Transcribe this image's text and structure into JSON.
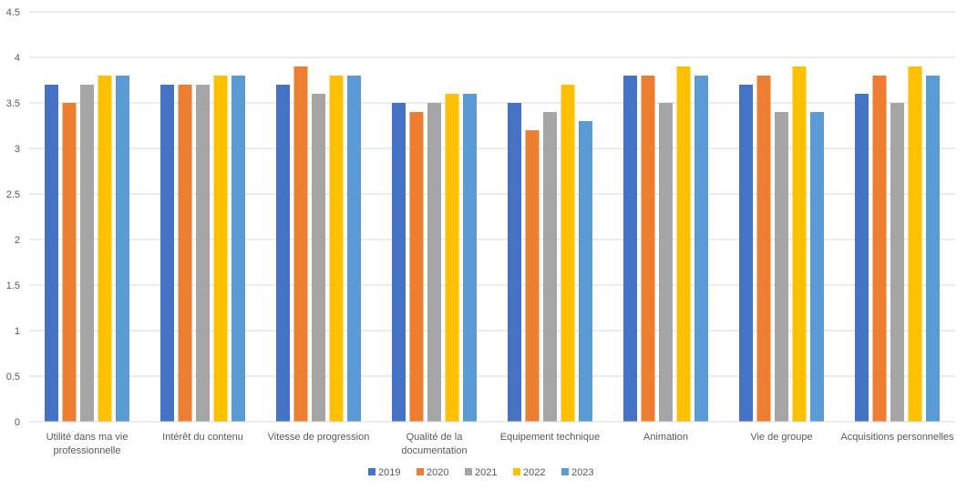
{
  "chart_data": {
    "type": "bar",
    "title": "",
    "xlabel": "",
    "ylabel": "",
    "ylim": [
      0,
      4.5
    ],
    "yticks": [
      "0",
      "0.5",
      "1",
      "1.5",
      "2",
      "2.5",
      "3",
      "3.5",
      "4",
      "4.5"
    ],
    "grid": true,
    "legend_position": "bottom",
    "categories": [
      [
        "Utilité dans ma vie",
        "professionnelle"
      ],
      [
        "Intérêt du contenu"
      ],
      [
        "Vitesse de progression"
      ],
      [
        "Qualité de la",
        "documentation"
      ],
      [
        "Equipement technique"
      ],
      [
        "Animation"
      ],
      [
        "Vie de groupe"
      ],
      [
        "Acquisitions personnelles"
      ]
    ],
    "series": [
      {
        "name": "2019",
        "color": "#4472C4",
        "values": [
          3.7,
          3.7,
          3.7,
          3.5,
          3.5,
          3.8,
          3.7,
          3.6
        ]
      },
      {
        "name": "2020",
        "color": "#ED7D31",
        "values": [
          3.5,
          3.7,
          3.9,
          3.4,
          3.2,
          3.8,
          3.8,
          3.8
        ]
      },
      {
        "name": "2021",
        "color": "#A5A5A5",
        "values": [
          3.7,
          3.7,
          3.6,
          3.5,
          3.4,
          3.5,
          3.4,
          3.5
        ]
      },
      {
        "name": "2022",
        "color": "#FFC000",
        "values": [
          3.8,
          3.8,
          3.8,
          3.6,
          3.7,
          3.9,
          3.9,
          3.9
        ]
      },
      {
        "name": "2023",
        "color": "#5B9BD5",
        "values": [
          3.8,
          3.8,
          3.8,
          3.6,
          3.3,
          3.8,
          3.4,
          3.8
        ]
      }
    ]
  }
}
